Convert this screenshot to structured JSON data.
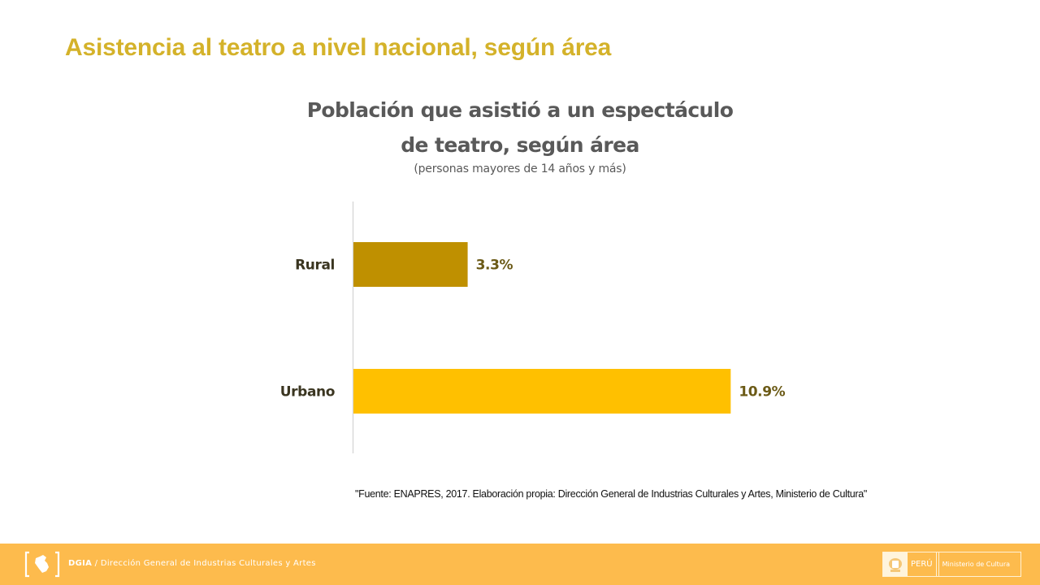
{
  "slide": {
    "title": "Asistencia al teatro a nivel nacional, según área",
    "source_note": "\"Fuente: ENAPRES,  2017. Elaboración propia: Dirección General de Industrias Culturales y Artes, Ministerio de Cultura\""
  },
  "chart_data": {
    "type": "bar",
    "orientation": "horizontal",
    "title": "Población que asistió a un espectáculo de teatro, según área",
    "title_lines": [
      "Población que asistió a un espectáculo",
      "de teatro, según área"
    ],
    "subtitle": "(personas mayores de 14 años y más)",
    "categories": [
      "Rural",
      "Urbano"
    ],
    "values": [
      3.3,
      10.9
    ],
    "value_labels": [
      "3.3%",
      "10.9%"
    ],
    "unit": "%",
    "colors": [
      "#bf9000",
      "#ffc000"
    ],
    "xlabel": "",
    "ylabel": "",
    "xlim": [
      0,
      12
    ],
    "grid": false,
    "legend": "none"
  },
  "footer": {
    "logo_icon": "peru-map-bracket-logo",
    "org_abbrev": "DGIA",
    "org_separator": " / ",
    "org_name": "Dirección General de Industrias Culturales y Artes",
    "gov_badge": {
      "shield_icon": "peru-coat-of-arms",
      "country": "PERÚ",
      "ministry": "Ministerio de Cultura"
    },
    "colors": {
      "background": "#fdbb4d",
      "text": "#ffffff"
    }
  }
}
